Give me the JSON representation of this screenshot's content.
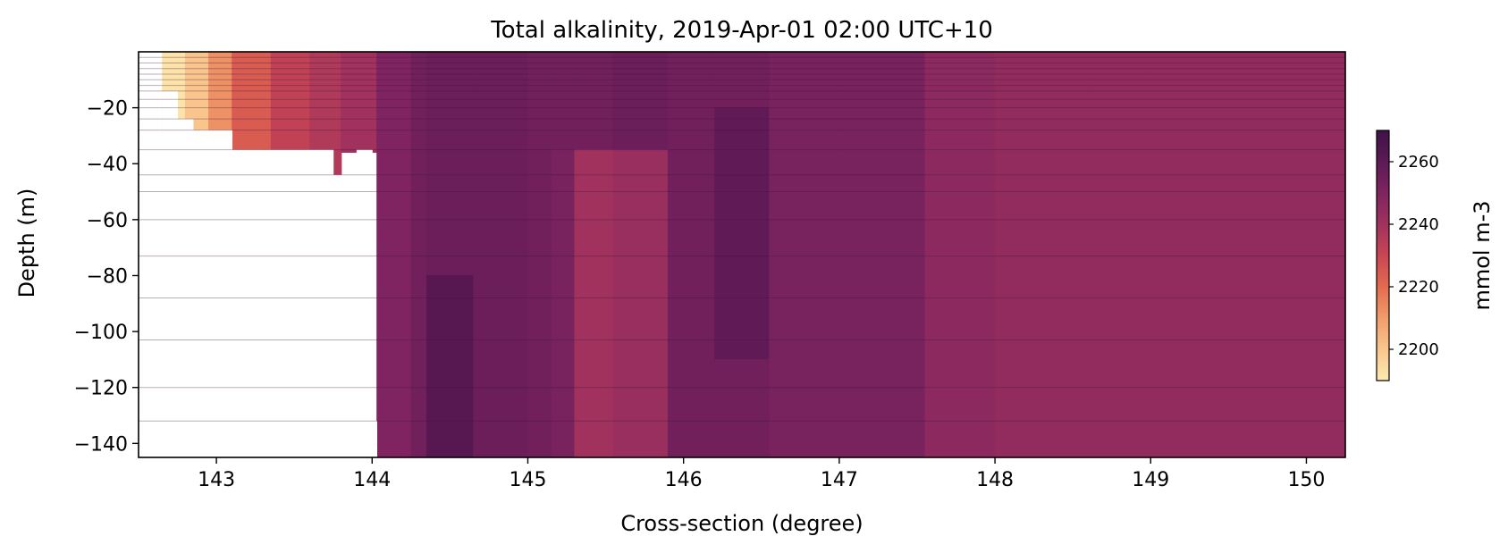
{
  "chart_data": {
    "type": "heatmap",
    "title": "Total alkalinity, 2019-Apr-01 02:00 UTC+10",
    "xlabel": "Cross-section (degree)",
    "ylabel": "Depth (m)",
    "xlim": [
      142.5,
      150.25
    ],
    "ylim": [
      -145,
      0
    ],
    "xticks": [
      143,
      144,
      145,
      146,
      147,
      148,
      149,
      150
    ],
    "xtick_labels": [
      "143",
      "144",
      "145",
      "146",
      "147",
      "148",
      "149",
      "150"
    ],
    "yticks": [
      -20,
      -40,
      -60,
      -80,
      -100,
      -120,
      -140
    ],
    "ytick_labels": [
      "−20",
      "−40",
      "−60",
      "−80",
      "−100",
      "−120",
      "−140"
    ],
    "colorbar": {
      "label": "mmol m-3",
      "range": [
        2190,
        2270
      ],
      "ticks": [
        2200,
        2220,
        2240,
        2260
      ],
      "tick_labels": [
        "2200",
        "2220",
        "2240",
        "2260"
      ],
      "colormap": "magma_r-like",
      "stops": [
        "#fdeab0",
        "#f9c58d",
        "#f19c6b",
        "#e46b4f",
        "#c94653",
        "#a0325d",
        "#7f2460",
        "#5d1a55",
        "#3f1247"
      ]
    },
    "depth_levels": [
      -2,
      -4,
      -6,
      -8,
      -10,
      -12,
      -14,
      -17,
      -20,
      -24,
      -28,
      -35,
      -44,
      -50,
      -60,
      -73,
      -88,
      -103,
      -120,
      -132,
      -145
    ],
    "seafloor": [
      {
        "x": [
          142.65,
          142.75
        ],
        "depth": -14
      },
      {
        "x": [
          142.75,
          142.85
        ],
        "depth": -24
      },
      {
        "x": [
          142.85,
          143.1
        ],
        "depth": -28
      },
      {
        "x": [
          143.1,
          143.4
        ],
        "depth": -35
      },
      {
        "x": [
          143.4,
          143.6
        ],
        "depth": -35
      },
      {
        "x": [
          143.6,
          143.75
        ],
        "depth": -35
      },
      {
        "x": [
          143.75,
          143.9
        ],
        "depth": -44
      },
      {
        "x": [
          143.9,
          144.0
        ],
        "depth": -35
      },
      {
        "x": [
          144.0,
          144.03
        ],
        "depth": -132
      },
      {
        "x": [
          144.03,
          150.25
        ],
        "depth": -145
      }
    ],
    "field": [
      {
        "x": [
          142.65,
          142.8
        ],
        "d": [
          0,
          -30
        ],
        "v": 2192
      },
      {
        "x": [
          142.8,
          142.95
        ],
        "d": [
          0,
          -30
        ],
        "v": 2200
      },
      {
        "x": [
          142.95,
          143.1
        ],
        "d": [
          0,
          -30
        ],
        "v": 2212
      },
      {
        "x": [
          143.1,
          143.35
        ],
        "d": [
          0,
          -36
        ],
        "v": 2224
      },
      {
        "x": [
          143.35,
          143.6
        ],
        "d": [
          0,
          -36
        ],
        "v": 2232
      },
      {
        "x": [
          143.6,
          143.8
        ],
        "d": [
          0,
          -44
        ],
        "v": 2236
      },
      {
        "x": [
          143.8,
          144.03
        ],
        "d": [
          0,
          -36
        ],
        "v": 2240
      },
      {
        "x": [
          144.03,
          144.25
        ],
        "d": [
          0,
          -145
        ],
        "v": 2250
      },
      {
        "x": [
          144.25,
          144.35
        ],
        "d": [
          0,
          -145
        ],
        "v": 2254
      },
      {
        "x": [
          144.35,
          144.65
        ],
        "d": [
          0,
          -80
        ],
        "v": 2256
      },
      {
        "x": [
          144.35,
          144.65
        ],
        "d": [
          -80,
          -145
        ],
        "v": 2262
      },
      {
        "x": [
          144.65,
          145.0
        ],
        "d": [
          0,
          -145
        ],
        "v": 2256
      },
      {
        "x": [
          145.0,
          145.15
        ],
        "d": [
          0,
          -145
        ],
        "v": 2254
      },
      {
        "x": [
          145.15,
          145.3
        ],
        "d": [
          0,
          -35
        ],
        "v": 2254
      },
      {
        "x": [
          145.15,
          145.3
        ],
        "d": [
          -35,
          -145
        ],
        "v": 2252
      },
      {
        "x": [
          145.3,
          145.55
        ],
        "d": [
          0,
          -35
        ],
        "v": 2254
      },
      {
        "x": [
          145.3,
          145.55
        ],
        "d": [
          -35,
          -145
        ],
        "v": 2240
      },
      {
        "x": [
          145.55,
          145.9
        ],
        "d": [
          0,
          -35
        ],
        "v": 2256
      },
      {
        "x": [
          145.55,
          145.9
        ],
        "d": [
          -35,
          -145
        ],
        "v": 2242
      },
      {
        "x": [
          145.9,
          146.2
        ],
        "d": [
          0,
          -145
        ],
        "v": 2254
      },
      {
        "x": [
          146.2,
          146.55
        ],
        "d": [
          0,
          -20
        ],
        "v": 2254
      },
      {
        "x": [
          146.2,
          146.55
        ],
        "d": [
          -20,
          -110
        ],
        "v": 2259
      },
      {
        "x": [
          146.2,
          146.55
        ],
        "d": [
          -110,
          -145
        ],
        "v": 2254
      },
      {
        "x": [
          146.55,
          147.0
        ],
        "d": [
          0,
          -145
        ],
        "v": 2252
      },
      {
        "x": [
          147.0,
          147.55
        ],
        "d": [
          0,
          -145
        ],
        "v": 2252
      },
      {
        "x": [
          147.55,
          148.0
        ],
        "d": [
          0,
          -145
        ],
        "v": 2246
      },
      {
        "x": [
          148.0,
          148.6
        ],
        "d": [
          0,
          -145
        ],
        "v": 2244
      },
      {
        "x": [
          148.6,
          149.0
        ],
        "d": [
          0,
          -145
        ],
        "v": 2244
      },
      {
        "x": [
          149.0,
          150.25
        ],
        "d": [
          0,
          -145
        ],
        "v": 2244
      }
    ]
  }
}
